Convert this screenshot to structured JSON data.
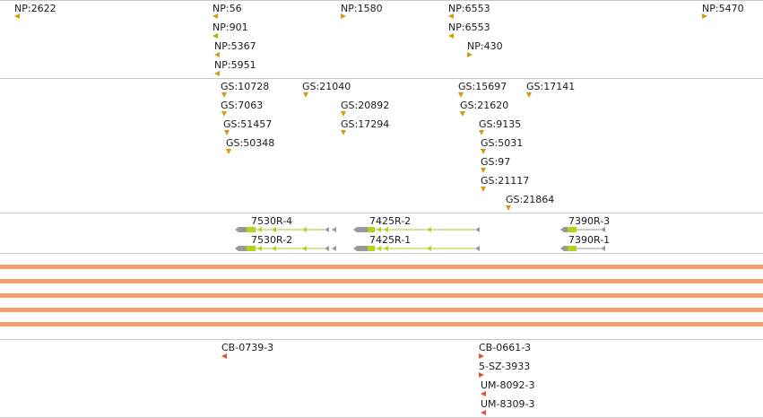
{
  "np_track": {
    "features": [
      {
        "label": "NP:2622",
        "strand": "left"
      },
      {
        "label": "NP:56",
        "strand": "left"
      },
      {
        "label": "NP:901",
        "strand": "left"
      },
      {
        "label": "NP:5367",
        "strand": "left"
      },
      {
        "label": "NP:5951",
        "strand": "left"
      },
      {
        "label": "NP:1580",
        "strand": "right"
      },
      {
        "label": "NP:6553",
        "strand": "left"
      },
      {
        "label": "NP:6553",
        "strand": "left"
      },
      {
        "label": "NP:430",
        "strand": "right"
      },
      {
        "label": "NP:5470",
        "strand": "right"
      }
    ]
  },
  "gs_track": {
    "features": [
      {
        "label": "GS:10728"
      },
      {
        "label": "GS:21040"
      },
      {
        "label": "GS:7063"
      },
      {
        "label": "GS:20892"
      },
      {
        "label": "GS:51457"
      },
      {
        "label": "GS:17294"
      },
      {
        "label": "GS:50348"
      },
      {
        "label": "GS:15697"
      },
      {
        "label": "GS:17141"
      },
      {
        "label": "GS:21620"
      },
      {
        "label": "GS:9135"
      },
      {
        "label": "GS:5031"
      },
      {
        "label": "GS:97"
      },
      {
        "label": "GS:21117"
      },
      {
        "label": "GS:21864"
      }
    ]
  },
  "transcript_track": {
    "transcripts": [
      {
        "label": "7530R-4"
      },
      {
        "label": "7530R-2"
      },
      {
        "label": "7425R-2"
      },
      {
        "label": "7425R-1"
      },
      {
        "label": "7390R-3"
      },
      {
        "label": "7390R-1"
      }
    ],
    "colors": {
      "utr": "#9a9a9a",
      "cds": "#b5d21a",
      "line": "#a8cf2e"
    }
  },
  "band_track": {
    "band_count": 5,
    "color": "#f2a072"
  },
  "reagent_track": {
    "features": [
      {
        "label": "CB-0739-3",
        "strand": "left"
      },
      {
        "label": "CB-0661-3",
        "strand": "right"
      },
      {
        "label": "5-SZ-3933",
        "strand": "right"
      },
      {
        "label": "UM-8092-3",
        "strand": "left"
      },
      {
        "label": "UM-8309-3",
        "strand": "left"
      }
    ],
    "color": "#e0553a"
  }
}
